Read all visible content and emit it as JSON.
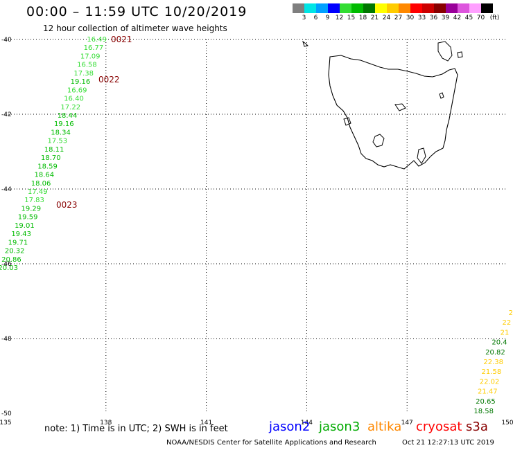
{
  "header": {
    "title": "00:00 – 11:59 UTC 10/20/2019",
    "subtitle": "12 hour collection of altimeter wave heights"
  },
  "color_scale": {
    "unit": "(ft)",
    "bins": [
      {
        "label": "3",
        "color": "#7f7f7f"
      },
      {
        "label": "6",
        "color": "#00e5e5"
      },
      {
        "label": "9",
        "color": "#00a0ff"
      },
      {
        "label": "12",
        "color": "#0000ff"
      },
      {
        "label": "15",
        "color": "#33dd33"
      },
      {
        "label": "18",
        "color": "#00bb00"
      },
      {
        "label": "21",
        "color": "#007700"
      },
      {
        "label": "24",
        "color": "#ffff00"
      },
      {
        "label": "27",
        "color": "#ffcc00"
      },
      {
        "label": "30",
        "color": "#ff8800"
      },
      {
        "label": "33",
        "color": "#ff0000"
      },
      {
        "label": "36",
        "color": "#cc0000"
      },
      {
        "label": "39",
        "color": "#880000"
      },
      {
        "label": "42",
        "color": "#990099"
      },
      {
        "label": "45",
        "color": "#dd55dd"
      },
      {
        "label": "70",
        "color": "#ffa0ff"
      },
      {
        "label": "",
        "color": "#000000"
      }
    ]
  },
  "map": {
    "lon_range": [
      135,
      150
    ],
    "lat_range": [
      -50,
      -40
    ],
    "x_ticks": [
      "135",
      "138",
      "141",
      "144",
      "147",
      "150"
    ],
    "y_ticks": [
      "-40",
      "-42",
      "-44",
      "-46",
      "-48",
      "-50"
    ],
    "grid": "dotted"
  },
  "tracks": [
    {
      "points": [
        {
          "v": "16.49",
          "c": "#33dd33"
        },
        {
          "v": "16.77",
          "c": "#33dd33"
        },
        {
          "v": "17.09",
          "c": "#33dd33"
        },
        {
          "v": "16.58",
          "c": "#33dd33"
        },
        {
          "v": "17.38",
          "c": "#33dd33"
        },
        {
          "v": "19.16",
          "c": "#00bb00"
        },
        {
          "v": "16.69",
          "c": "#33dd33"
        },
        {
          "v": "16.40",
          "c": "#33dd33"
        },
        {
          "v": "17.22",
          "c": "#33dd33"
        },
        {
          "v": "18.44",
          "c": "#00bb00"
        },
        {
          "v": "19.16",
          "c": "#00bb00"
        },
        {
          "v": "18.34",
          "c": "#00bb00"
        },
        {
          "v": "17.53",
          "c": "#33dd33"
        },
        {
          "v": "18.11",
          "c": "#00bb00"
        },
        {
          "v": "18.70",
          "c": "#00bb00"
        },
        {
          "v": "18.59",
          "c": "#00bb00"
        },
        {
          "v": "18.64",
          "c": "#00bb00"
        },
        {
          "v": "18.06",
          "c": "#00bb00"
        },
        {
          "v": "17.49",
          "c": "#33dd33"
        },
        {
          "v": "17.83",
          "c": "#33dd33"
        },
        {
          "v": "19.29",
          "c": "#00bb00"
        },
        {
          "v": "19.59",
          "c": "#00bb00"
        },
        {
          "v": "19.01",
          "c": "#00bb00"
        },
        {
          "v": "19.43",
          "c": "#00bb00"
        },
        {
          "v": "19.71",
          "c": "#00bb00"
        },
        {
          "v": "20.32",
          "c": "#00bb00"
        },
        {
          "v": "20.86",
          "c": "#00bb00"
        },
        {
          "v": "20.03",
          "c": "#00bb00"
        }
      ]
    },
    {
      "points": [
        {
          "v": "2",
          "c": "#ffcc00"
        },
        {
          "v": "22",
          "c": "#ffcc00"
        },
        {
          "v": "21",
          "c": "#ffcc00"
        },
        {
          "v": "20.4",
          "c": "#007700"
        },
        {
          "v": "20.82",
          "c": "#007700"
        },
        {
          "v": "22.38",
          "c": "#ffcc00"
        },
        {
          "v": "21.58",
          "c": "#ffcc00"
        },
        {
          "v": "22.02",
          "c": "#ffcc00"
        },
        {
          "v": "21.47",
          "c": "#ffcc00"
        },
        {
          "v": "20.65",
          "c": "#007700"
        },
        {
          "v": "18.58",
          "c": "#007700"
        }
      ]
    }
  ],
  "time_labels": [
    "0021",
    "0022",
    "0023"
  ],
  "time_label_color": "#880000",
  "footer": {
    "note": "note:  1) Time is in UTC;  2) SWH is in feet",
    "satellites": [
      {
        "name": "jason2",
        "color": "#0000ff"
      },
      {
        "name": "jason3",
        "color": "#00aa00"
      },
      {
        "name": "altika",
        "color": "#ff8800"
      },
      {
        "name": "cryosat",
        "color": "#ff0000"
      },
      {
        "name": "s3a",
        "color": "#880000"
      }
    ],
    "credit": "NOAA/NESDIS Center for Satellite Applications and Research",
    "timestamp": "Oct 21 12:27:13 UTC 2019"
  }
}
